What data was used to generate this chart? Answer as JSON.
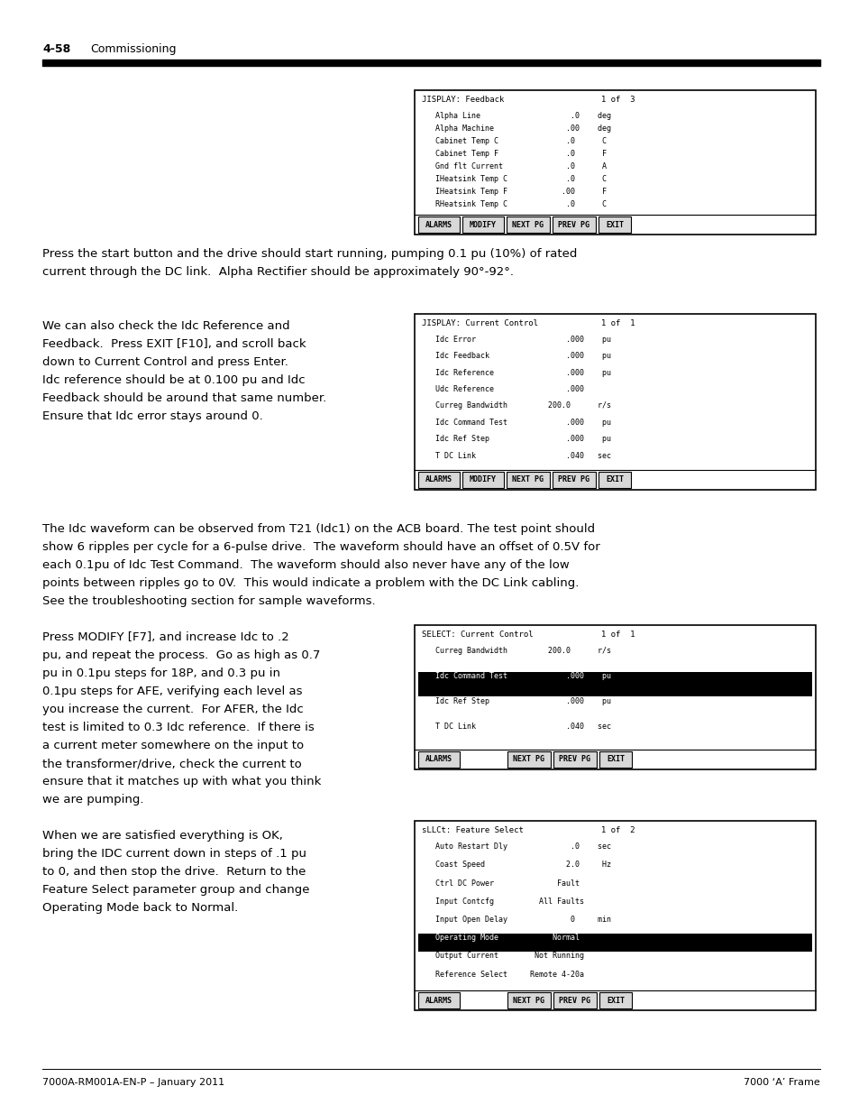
{
  "page_header_num": "4-58",
  "page_header_title": "Commissioning",
  "footer_left": "7000A-RM001A-EN-P – January 2011",
  "footer_right": "7000 ‘A’ Frame",
  "bg_color": "#ffffff",
  "box1": {
    "title": "JISPLAY: Feedback                    1 of  3",
    "lines": [
      "   Alpha Line                    .0    deg",
      "   Alpha Machine                .00    deg",
      "   Cabinet Temp C               .0      C",
      "   Cabinet Temp F               .0      F",
      "   Gnd flt Current              .0      A",
      "   IHeatsink Temp C             .0      C",
      "   IHeatsink Temp F            .00      F",
      "   RHeatsink Temp C             .0      C"
    ],
    "buttons": [
      "ALARMS",
      "MODIFY",
      "NEXT PG",
      "PREV PG",
      "EXIT"
    ],
    "highlight_line": -1
  },
  "section1_text": [
    "Press the start button and the drive should start running, pumping 0.1 pu (10%) of rated",
    "current through the DC link.  Alpha Rectifier should be approximately 90°-92°."
  ],
  "section2_left": [
    "We can also check the Idc Reference and",
    "Feedback.  Press EXIT [F10], and scroll back",
    "down to Current Control and press Enter.",
    "Idc reference should be at 0.100 pu and Idc",
    "Feedback should be around that same number.",
    "Ensure that Idc error stays around 0."
  ],
  "box2": {
    "title": "JISPLAY: Current Control             1 of  1",
    "lines": [
      "   Idc Error                    .000    pu",
      "   Idc Feedback                 .000    pu",
      "   Idc Reference                .000    pu",
      "   Udc Reference                .000",
      "   Curreg Bandwidth         200.0      r/s",
      "   Idc Command Test             .000    pu",
      "   Idc Ref Step                 .000    pu",
      "   T DC Link                    .040   sec"
    ],
    "buttons": [
      "ALARMS",
      "MODIFY",
      "NEXT PG",
      "PREV PG",
      "EXIT"
    ],
    "highlight_line": -1
  },
  "section3_text": [
    "The Idc waveform can be observed from T21 (Idc1) on the ACB board. The test point should",
    "show 6 ripples per cycle for a 6-pulse drive.  The waveform should have an offset of 0.5V for",
    "each 0.1pu of Idc Test Command.  The waveform should also never have any of the low",
    "points between ripples go to 0V.  This would indicate a problem with the DC Link cabling.",
    "See the troubleshooting section for sample waveforms."
  ],
  "section4_left": [
    "Press MODIFY [F7], and increase Idc to .2",
    "pu, and repeat the process.  Go as high as 0.7",
    "pu in 0.1pu steps for 18P, and 0.3 pu in",
    "0.1pu steps for AFE, verifying each level as",
    "you increase the current.  For AFER, the Idc",
    "test is limited to 0.3 Idc reference.  If there is",
    "a current meter somewhere on the input to",
    "the transformer/drive, check the current to",
    "ensure that it matches up with what you think",
    "we are pumping."
  ],
  "box3": {
    "title": "SELECT: Current Control              1 of  1",
    "lines": [
      "   Curreg Bandwidth         200.0      r/s",
      "   Idc Command Test             .000    pu",
      "   Idc Ref Step                 .000    pu",
      "   T DC Link                    .040   sec"
    ],
    "buttons": [
      "ALARMS",
      "",
      "NEXT PG",
      "PREV PG",
      "EXIT"
    ],
    "highlight_line": 1
  },
  "section5_left": [
    "When we are satisfied everything is OK,",
    "bring the IDC current down in steps of .1 pu",
    "to 0, and then stop the drive.  Return to the",
    "Feature Select parameter group and change",
    "Operating Mode back to Normal."
  ],
  "box4": {
    "title": "sLLCt: Feature Select                1 of  2",
    "lines": [
      "   Auto Restart Dly              .0    sec",
      "   Coast Speed                  2.0     Hz",
      "   Ctrl DC Power              Fault",
      "   Input Contcfg          All Faults",
      "   Input Open Delay              0     min",
      "   Operating Mode            Normal",
      "   Output Current        Not Running",
      "   Reference Select     Remote 4-20a"
    ],
    "buttons": [
      "ALARMS",
      "",
      "NEXT PG",
      "PREV PG",
      "EXIT"
    ],
    "highlight_line": 5
  }
}
